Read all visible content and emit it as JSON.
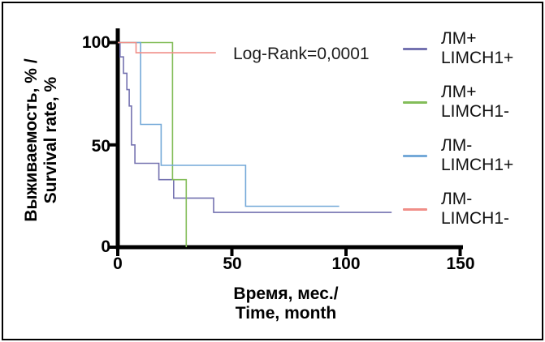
{
  "chart_data": {
    "type": "line",
    "variant": "kaplan-meier-step-survival",
    "title": "",
    "annotation": "Log-Rank=0,0001",
    "xlabel_line1": "Время, мес./",
    "xlabel_line2": "Time, month",
    "ylabel_line1": "Выживаемость, % /",
    "ylabel_line2": "Survival rate, %",
    "xlim": [
      0,
      150
    ],
    "ylim": [
      0,
      100
    ],
    "xticks": [
      0,
      50,
      100,
      150
    ],
    "yticks": [
      0,
      50,
      100
    ],
    "grid": false,
    "legend_position": "right",
    "axis_color": "#000000",
    "series": [
      {
        "name": "ЛМ+ LIMCH1+",
        "legend_line1": "ЛМ+",
        "legend_line2": "LIMCH1+",
        "color": "#7472b0",
        "points": [
          [
            0,
            100
          ],
          [
            1,
            93
          ],
          [
            2.5,
            85
          ],
          [
            4,
            77
          ],
          [
            5,
            69
          ],
          [
            6,
            50
          ],
          [
            7.5,
            41
          ],
          [
            18,
            33
          ],
          [
            24.5,
            24
          ],
          [
            42,
            17
          ]
        ],
        "end_month": 120
      },
      {
        "name": "ЛМ+ LIMCH1-",
        "legend_line1": "ЛМ+",
        "legend_line2": "LIMCH1-",
        "color": "#83bd59",
        "points": [
          [
            0,
            100
          ],
          [
            24,
            33
          ],
          [
            30,
            0
          ]
        ],
        "end_month": 30
      },
      {
        "name": "ЛМ- LIMCH1+",
        "legend_line1": "ЛМ-",
        "legend_line2": "LIMCH1+",
        "color": "#74a9d8",
        "points": [
          [
            0,
            100
          ],
          [
            10,
            60
          ],
          [
            19,
            40
          ],
          [
            56,
            20
          ]
        ],
        "end_month": 97
      },
      {
        "name": "ЛМ- LIMCH1-",
        "legend_line1": "ЛМ-",
        "legend_line2": "LIMCH1-",
        "color": "#f08e88",
        "points": [
          [
            0,
            100
          ],
          [
            8,
            95
          ]
        ],
        "end_month": 43
      }
    ]
  }
}
